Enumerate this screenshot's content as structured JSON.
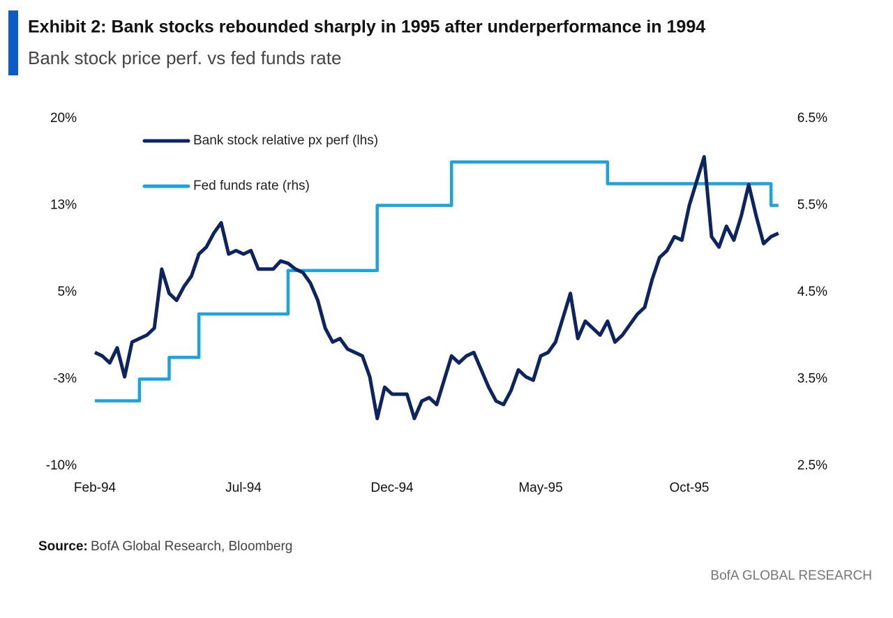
{
  "header": {
    "title": "Exhibit 2: Bank stocks rebounded sharply in 1995 after underperformance in 1994",
    "subtitle": "Bank stock price perf. vs fed funds rate"
  },
  "chart_data": {
    "type": "line",
    "categories": [
      "Feb-94",
      null,
      null,
      null,
      null,
      null,
      null,
      null,
      null,
      null,
      null,
      null,
      null,
      null,
      null,
      null,
      null,
      null,
      null,
      null,
      "Jul-94",
      null,
      null,
      null,
      null,
      null,
      null,
      null,
      null,
      null,
      null,
      null,
      null,
      null,
      null,
      null,
      null,
      null,
      null,
      null,
      "Dec-94",
      null,
      null,
      null,
      null,
      null,
      null,
      null,
      null,
      null,
      null,
      null,
      null,
      null,
      null,
      null,
      null,
      null,
      null,
      null,
      "May-95",
      null,
      null,
      null,
      null,
      null,
      null,
      null,
      null,
      null,
      null,
      null,
      null,
      null,
      null,
      null,
      null,
      null,
      null,
      null,
      "Oct-95",
      null,
      null,
      null,
      null,
      null,
      null,
      null,
      null,
      null,
      null,
      null,
      null
    ],
    "series": [
      {
        "name": "Bank stock relative px perf (lhs)",
        "color": "#0c2461",
        "axis": "y",
        "values": [
          -0.2,
          -0.5,
          -1.1,
          0.2,
          -2.3,
          0.7,
          1.0,
          1.3,
          1.9,
          7.0,
          4.9,
          4.3,
          5.5,
          6.4,
          8.3,
          8.9,
          10.1,
          11.0,
          8.3,
          8.6,
          8.3,
          8.6,
          7.0,
          7.0,
          7.0,
          7.7,
          7.5,
          7.0,
          6.7,
          5.8,
          4.3,
          1.9,
          0.7,
          1.0,
          0.1,
          -0.2,
          -0.5,
          -2.3,
          -5.9,
          -3.2,
          -3.8,
          -3.8,
          -3.8,
          -5.9,
          -4.4,
          -4.1,
          -4.7,
          -2.6,
          -0.5,
          -1.1,
          -0.5,
          -0.2,
          -1.7,
          -3.2,
          -4.4,
          -4.7,
          -3.5,
          -1.7,
          -2.3,
          -2.6,
          -0.5,
          -0.2,
          0.7,
          2.8,
          4.9,
          1.0,
          2.5,
          1.9,
          1.3,
          2.5,
          0.7,
          1.3,
          2.2,
          3.1,
          3.7,
          6.1,
          8.0,
          8.6,
          9.8,
          9.5,
          12.5,
          14.6,
          16.7,
          9.8,
          8.9,
          10.7,
          9.5,
          11.6,
          14.3,
          11.6,
          9.2,
          9.8,
          10.1
        ]
      },
      {
        "name": "Fed funds rate (rhs)",
        "color": "#1aa3dc",
        "axis": "y2",
        "interpolation": "step-after",
        "values": [
          3.25,
          3.25,
          3.25,
          3.25,
          3.25,
          3.25,
          3.5,
          3.5,
          3.5,
          3.5,
          3.75,
          3.75,
          3.75,
          3.75,
          4.25,
          4.25,
          4.25,
          4.25,
          4.25,
          4.25,
          4.25,
          4.25,
          4.25,
          4.25,
          4.25,
          4.25,
          4.75,
          4.75,
          4.75,
          4.75,
          4.75,
          4.75,
          4.75,
          4.75,
          4.75,
          4.75,
          4.75,
          4.75,
          5.5,
          5.5,
          5.5,
          5.5,
          5.5,
          5.5,
          5.5,
          5.5,
          5.5,
          5.5,
          6.0,
          6.0,
          6.0,
          6.0,
          6.0,
          6.0,
          6.0,
          6.0,
          6.0,
          6.0,
          6.0,
          6.0,
          6.0,
          6.0,
          6.0,
          6.0,
          6.0,
          6.0,
          6.0,
          6.0,
          6.0,
          5.75,
          5.75,
          5.75,
          5.75,
          5.75,
          5.75,
          5.75,
          5.75,
          5.75,
          5.75,
          5.75,
          5.75,
          5.75,
          5.75,
          5.75,
          5.75,
          5.75,
          5.75,
          5.75,
          5.75,
          5.75,
          5.75,
          5.5,
          5.5
        ]
      }
    ],
    "ylim": [
      -10,
      20
    ],
    "yticks": [
      {
        "value": -10,
        "label": "-10%"
      },
      {
        "value": -2.5,
        "label": "-3%"
      },
      {
        "value": 5,
        "label": "5%"
      },
      {
        "value": 12.5,
        "label": "13%"
      },
      {
        "value": 20,
        "label": "20%"
      }
    ],
    "y2lim": [
      2.5,
      6.5
    ],
    "y2ticks": [
      {
        "value": 2.5,
        "label": "2.5%"
      },
      {
        "value": 3.5,
        "label": "3.5%"
      },
      {
        "value": 4.5,
        "label": "4.5%"
      },
      {
        "value": 5.5,
        "label": "5.5%"
      },
      {
        "value": 6.5,
        "label": "6.5%"
      }
    ],
    "grid": false,
    "legend": "top-left"
  },
  "footer": {
    "source_label": "Source:",
    "source_text": "BofA Global Research, Bloomberg",
    "brand": "BofA GLOBAL RESEARCH"
  }
}
